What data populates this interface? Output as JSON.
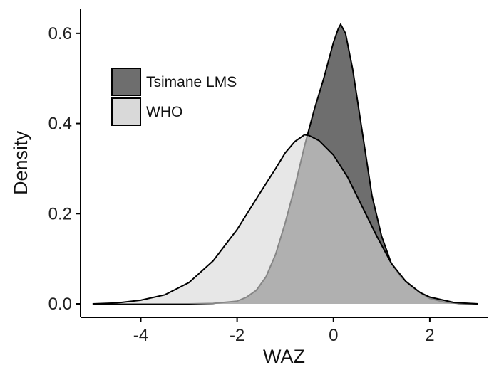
{
  "chart_data": {
    "type": "area",
    "title": "",
    "xlabel": "WAZ",
    "ylabel": "Density",
    "xlim": [
      -5.25,
      3.2
    ],
    "ylim": [
      -0.03,
      0.655
    ],
    "x_ticks": [
      -4,
      -2,
      0,
      2
    ],
    "x_tick_labels": [
      "-4",
      "-2",
      "0",
      "2"
    ],
    "y_ticks": [
      0.0,
      0.2,
      0.4,
      0.6
    ],
    "y_tick_labels": [
      "0.0",
      "0.2",
      "0.4",
      "0.6"
    ],
    "grid": false,
    "legend_position": "top-left",
    "series": [
      {
        "name": "Tsimane LMS",
        "fill_color": "#6e6e6e",
        "points": [
          [
            -5.0,
            0.0
          ],
          [
            -3.0,
            0.0
          ],
          [
            -2.5,
            0.001
          ],
          [
            -2.0,
            0.006
          ],
          [
            -1.8,
            0.015
          ],
          [
            -1.6,
            0.03
          ],
          [
            -1.4,
            0.06
          ],
          [
            -1.2,
            0.11
          ],
          [
            -1.0,
            0.18
          ],
          [
            -0.8,
            0.26
          ],
          [
            -0.6,
            0.35
          ],
          [
            -0.4,
            0.43
          ],
          [
            -0.2,
            0.5
          ],
          [
            0.0,
            0.58
          ],
          [
            0.1,
            0.61
          ],
          [
            0.15,
            0.62
          ],
          [
            0.25,
            0.6
          ],
          [
            0.4,
            0.52
          ],
          [
            0.6,
            0.38
          ],
          [
            0.8,
            0.24
          ],
          [
            1.0,
            0.15
          ],
          [
            1.2,
            0.09
          ],
          [
            1.4,
            0.06
          ],
          [
            1.6,
            0.04
          ],
          [
            1.8,
            0.025
          ],
          [
            2.0,
            0.012
          ],
          [
            2.3,
            0.004
          ],
          [
            2.6,
            0.001
          ],
          [
            3.0,
            0.0
          ]
        ]
      },
      {
        "name": "WHO",
        "fill_color": "#d9d9d9",
        "points": [
          [
            -5.0,
            0.0
          ],
          [
            -4.5,
            0.002
          ],
          [
            -4.0,
            0.008
          ],
          [
            -3.5,
            0.02
          ],
          [
            -3.0,
            0.047
          ],
          [
            -2.5,
            0.095
          ],
          [
            -2.0,
            0.165
          ],
          [
            -1.5,
            0.25
          ],
          [
            -1.2,
            0.3
          ],
          [
            -1.0,
            0.335
          ],
          [
            -0.8,
            0.36
          ],
          [
            -0.6,
            0.375
          ],
          [
            -0.5,
            0.373
          ],
          [
            -0.3,
            0.362
          ],
          [
            0.0,
            0.33
          ],
          [
            0.3,
            0.28
          ],
          [
            0.6,
            0.215
          ],
          [
            0.9,
            0.15
          ],
          [
            1.2,
            0.09
          ],
          [
            1.5,
            0.05
          ],
          [
            1.8,
            0.025
          ],
          [
            2.0,
            0.015
          ],
          [
            2.5,
            0.003
          ],
          [
            3.0,
            0.0
          ]
        ]
      }
    ]
  }
}
